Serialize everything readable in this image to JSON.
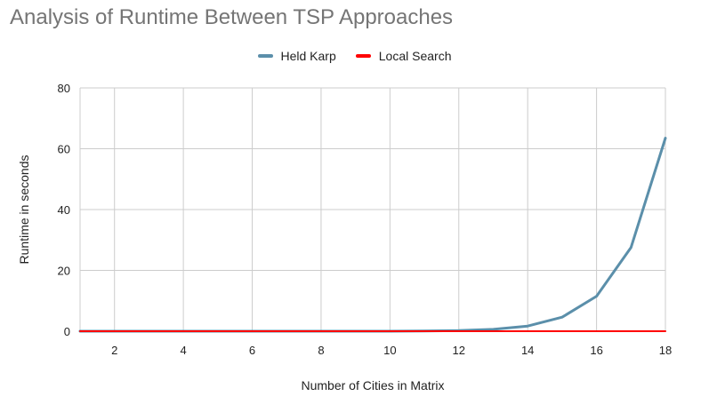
{
  "chart_data": {
    "type": "line",
    "title": "Analysis of Runtime Between TSP Approaches",
    "xlabel": "Number of Cities in Matrix",
    "ylabel": "Runtime in seconds",
    "x": [
      1,
      2,
      3,
      4,
      5,
      6,
      7,
      8,
      9,
      10,
      11,
      12,
      13,
      14,
      15,
      16,
      17,
      18
    ],
    "x_ticks": [
      2,
      4,
      6,
      8,
      10,
      12,
      14,
      16,
      18
    ],
    "xlim": [
      1,
      18
    ],
    "y_ticks": [
      0,
      20,
      40,
      60,
      80
    ],
    "ylim": [
      0,
      80
    ],
    "grid": true,
    "legend_position": "top",
    "series": [
      {
        "name": "Held Karp",
        "color": "#5b8faa",
        "values": [
          0,
          0,
          0,
          0,
          0,
          0,
          0,
          0,
          0,
          0,
          0.05,
          0.2,
          0.6,
          1.7,
          4.6,
          11.5,
          27.5,
          63.5
        ]
      },
      {
        "name": "Local Search",
        "color": "#ff0000",
        "values": [
          0,
          0,
          0,
          0,
          0,
          0,
          0,
          0,
          0,
          0,
          0,
          0,
          0,
          0,
          0,
          0,
          0,
          0
        ]
      }
    ]
  }
}
